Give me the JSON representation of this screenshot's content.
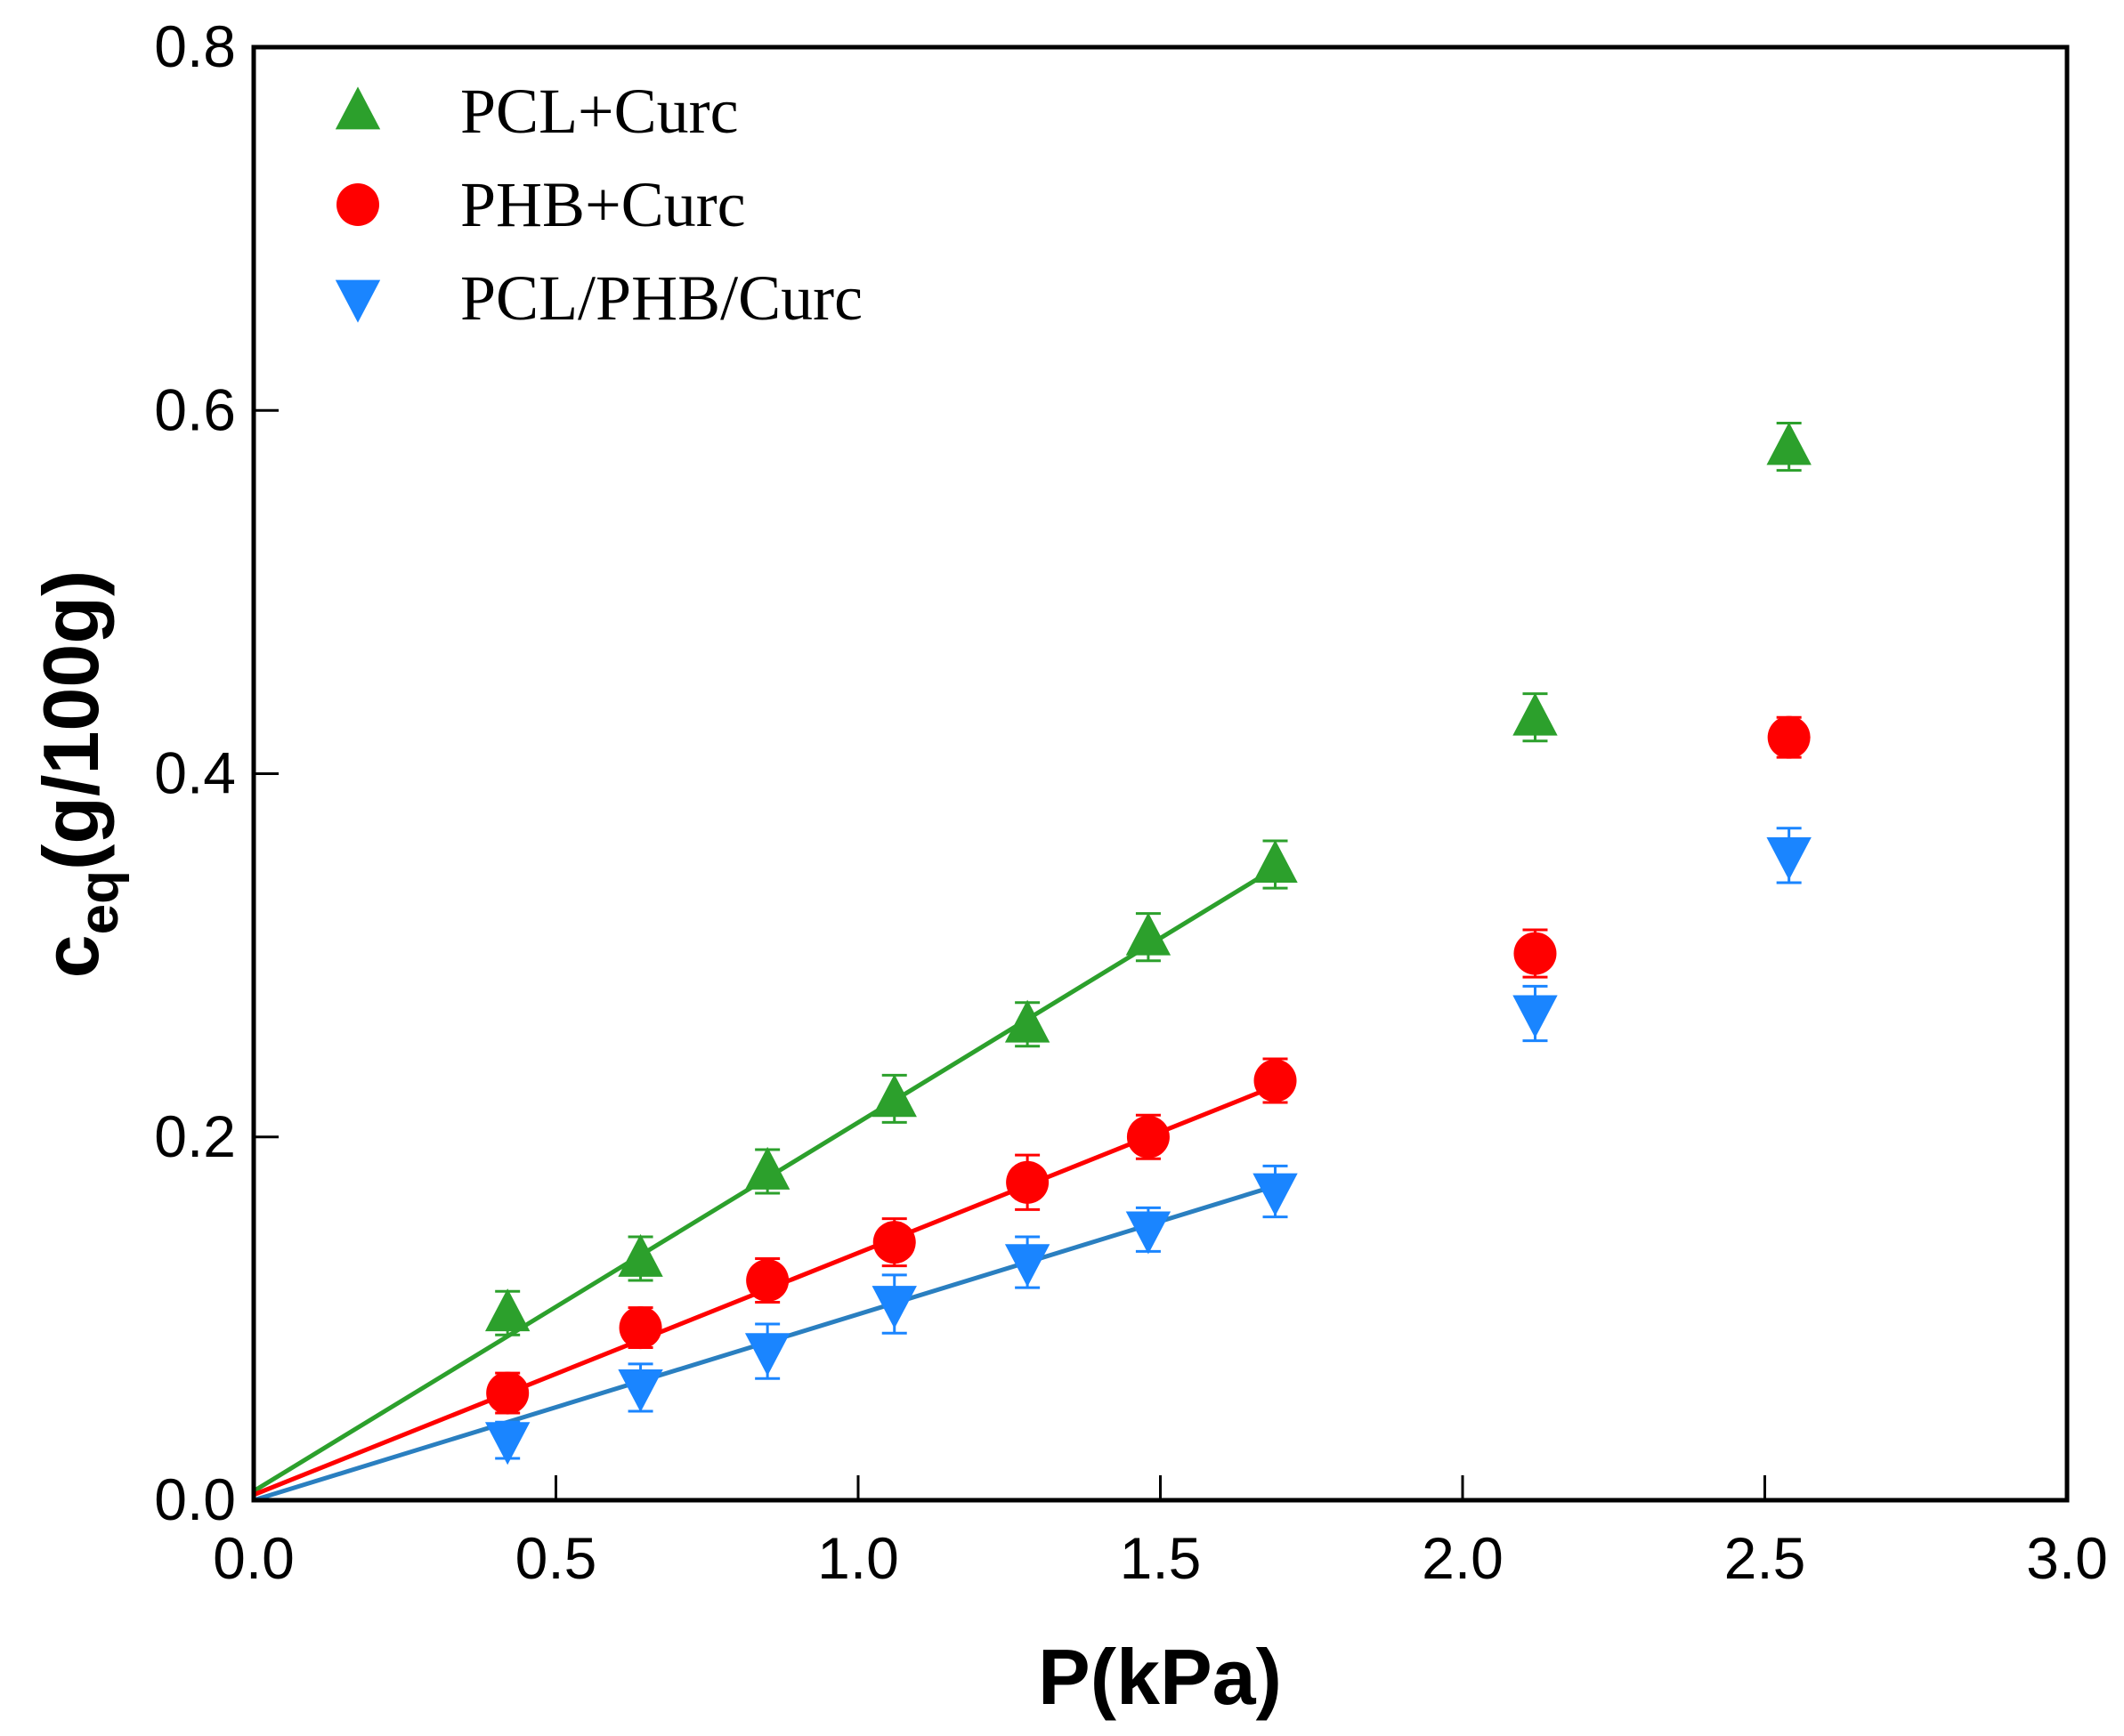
{
  "chart_data": {
    "type": "scatter",
    "xlabel": "P(kPa)",
    "ylabel_main": "c",
    "ylabel_sub": "eq",
    "ylabel_unit": "(g/100g)",
    "xlim": [
      0,
      3.0
    ],
    "ylim": [
      0,
      0.8
    ],
    "xticks": [
      "0.0",
      "0.5",
      "1.0",
      "1.5",
      "2.0",
      "2.5",
      "3.0"
    ],
    "yticks": [
      "0.0",
      "0.2",
      "0.4",
      "0.6",
      "0.8"
    ],
    "legend_position": "top-left",
    "x": [
      0.42,
      0.64,
      0.85,
      1.06,
      1.28,
      1.48,
      1.69,
      2.12,
      2.54
    ],
    "series": [
      {
        "name": "PCL+Curc",
        "marker": "triangle-up",
        "color": "#2ca02c",
        "values": [
          0.103,
          0.133,
          0.181,
          0.221,
          0.262,
          0.31,
          0.35,
          0.431,
          0.58
        ],
        "errors": [
          0.012,
          0.012,
          0.012,
          0.013,
          0.012,
          0.013,
          0.013,
          0.013,
          0.013
        ],
        "fit": {
          "x": [
            0,
            1.69
          ],
          "y": [
            0.005,
            0.348
          ]
        }
      },
      {
        "name": "PHB+Curc",
        "marker": "circle",
        "color": "#ff0000",
        "values": [
          0.059,
          0.095,
          0.121,
          0.142,
          0.175,
          0.2,
          0.231,
          0.301,
          0.42
        ],
        "errors": [
          0.011,
          0.011,
          0.012,
          0.013,
          0.015,
          0.012,
          0.012,
          0.013,
          0.011
        ],
        "fit": {
          "x": [
            0,
            1.69
          ],
          "y": [
            0.003,
            0.228
          ]
        }
      },
      {
        "name": "PCL/PHB/Curc",
        "marker": "triangle-down",
        "color": "#1a85ff",
        "values": [
          0.033,
          0.062,
          0.082,
          0.108,
          0.131,
          0.149,
          0.17,
          0.268,
          0.355
        ],
        "errors": [
          0.01,
          0.013,
          0.015,
          0.016,
          0.014,
          0.012,
          0.014,
          0.015,
          0.015
        ],
        "fit_color": "#2a7fc0",
        "fit": {
          "x": [
            0,
            1.69
          ],
          "y": [
            0.0,
            0.173
          ]
        }
      }
    ]
  }
}
